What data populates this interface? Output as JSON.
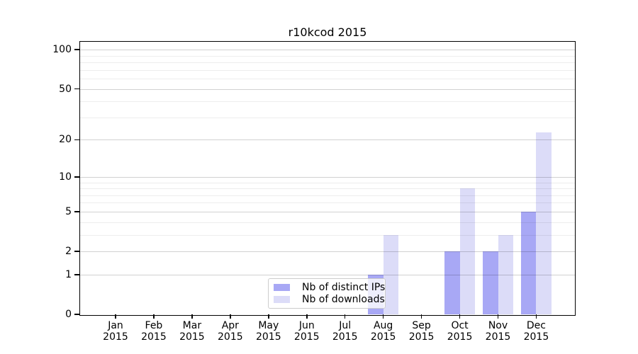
{
  "chart_data": {
    "type": "bar",
    "title": "r10kcod 2015",
    "categories": [
      "Jan",
      "Feb",
      "Mar",
      "Apr",
      "May",
      "Jun",
      "Jul",
      "Aug",
      "Sep",
      "Oct",
      "Nov",
      "Dec"
    ],
    "year": "2015",
    "series": [
      {
        "name": "Nb of distinct IPs",
        "color": "#a8a8f5",
        "values": [
          0,
          0,
          0,
          0,
          0,
          0,
          0,
          1,
          0,
          2,
          2,
          5
        ]
      },
      {
        "name": "Nb of downloads",
        "color": "#dcdcf8",
        "values": [
          0,
          0,
          0,
          0,
          0,
          0,
          0,
          3,
          0,
          8,
          3,
          23
        ]
      }
    ],
    "xlabel": "",
    "ylabel": "",
    "yscale": "log1p",
    "ylim": [
      0,
      115
    ],
    "y_major_ticks": [
      0,
      1,
      2,
      5,
      10,
      20,
      50,
      100
    ],
    "y_minor_ticks": [
      3,
      4,
      6,
      7,
      8,
      9,
      30,
      40,
      60,
      70,
      80,
      90
    ],
    "grid": true,
    "legend_position": "lower center",
    "axis_color": "#000000",
    "background_color": "#ffffff"
  }
}
